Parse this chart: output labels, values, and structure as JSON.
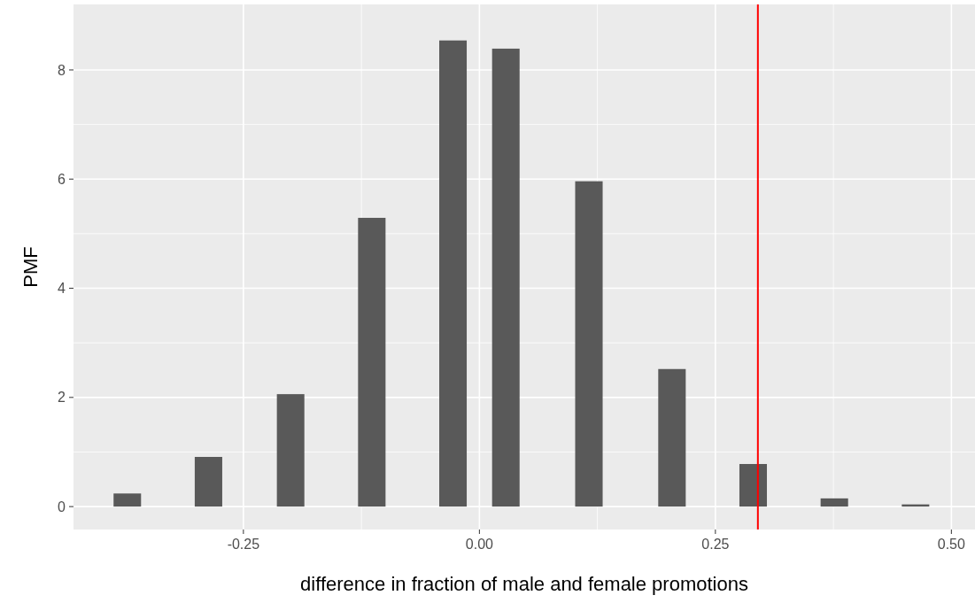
{
  "chart_data": {
    "type": "bar",
    "xlabel": "difference in fraction of male and female promotions",
    "ylabel": "PMF",
    "x": [
      -0.373,
      -0.287,
      -0.2,
      -0.114,
      -0.028,
      0.028,
      0.116,
      0.204,
      0.29,
      0.376,
      0.462
    ],
    "values": [
      0.24,
      0.91,
      2.06,
      5.29,
      8.54,
      8.39,
      5.96,
      2.52,
      0.78,
      0.15,
      0.04
    ],
    "color": "#595959",
    "xlim": [
      -0.43,
      0.525
    ],
    "ylim": [
      -0.42,
      9.2
    ],
    "xticks": [
      {
        "value": -0.25,
        "label": "-0.25"
      },
      {
        "value": 0,
        "label": "0.00"
      },
      {
        "value": 0.25,
        "label": "0.25"
      },
      {
        "value": 0.5,
        "label": "0.50"
      }
    ],
    "yticks": [
      0,
      2,
      4,
      6,
      8
    ],
    "grid": true,
    "ref_lines": [
      {
        "axis": "x",
        "value": 0.295,
        "color": "#ff0000"
      }
    ]
  }
}
